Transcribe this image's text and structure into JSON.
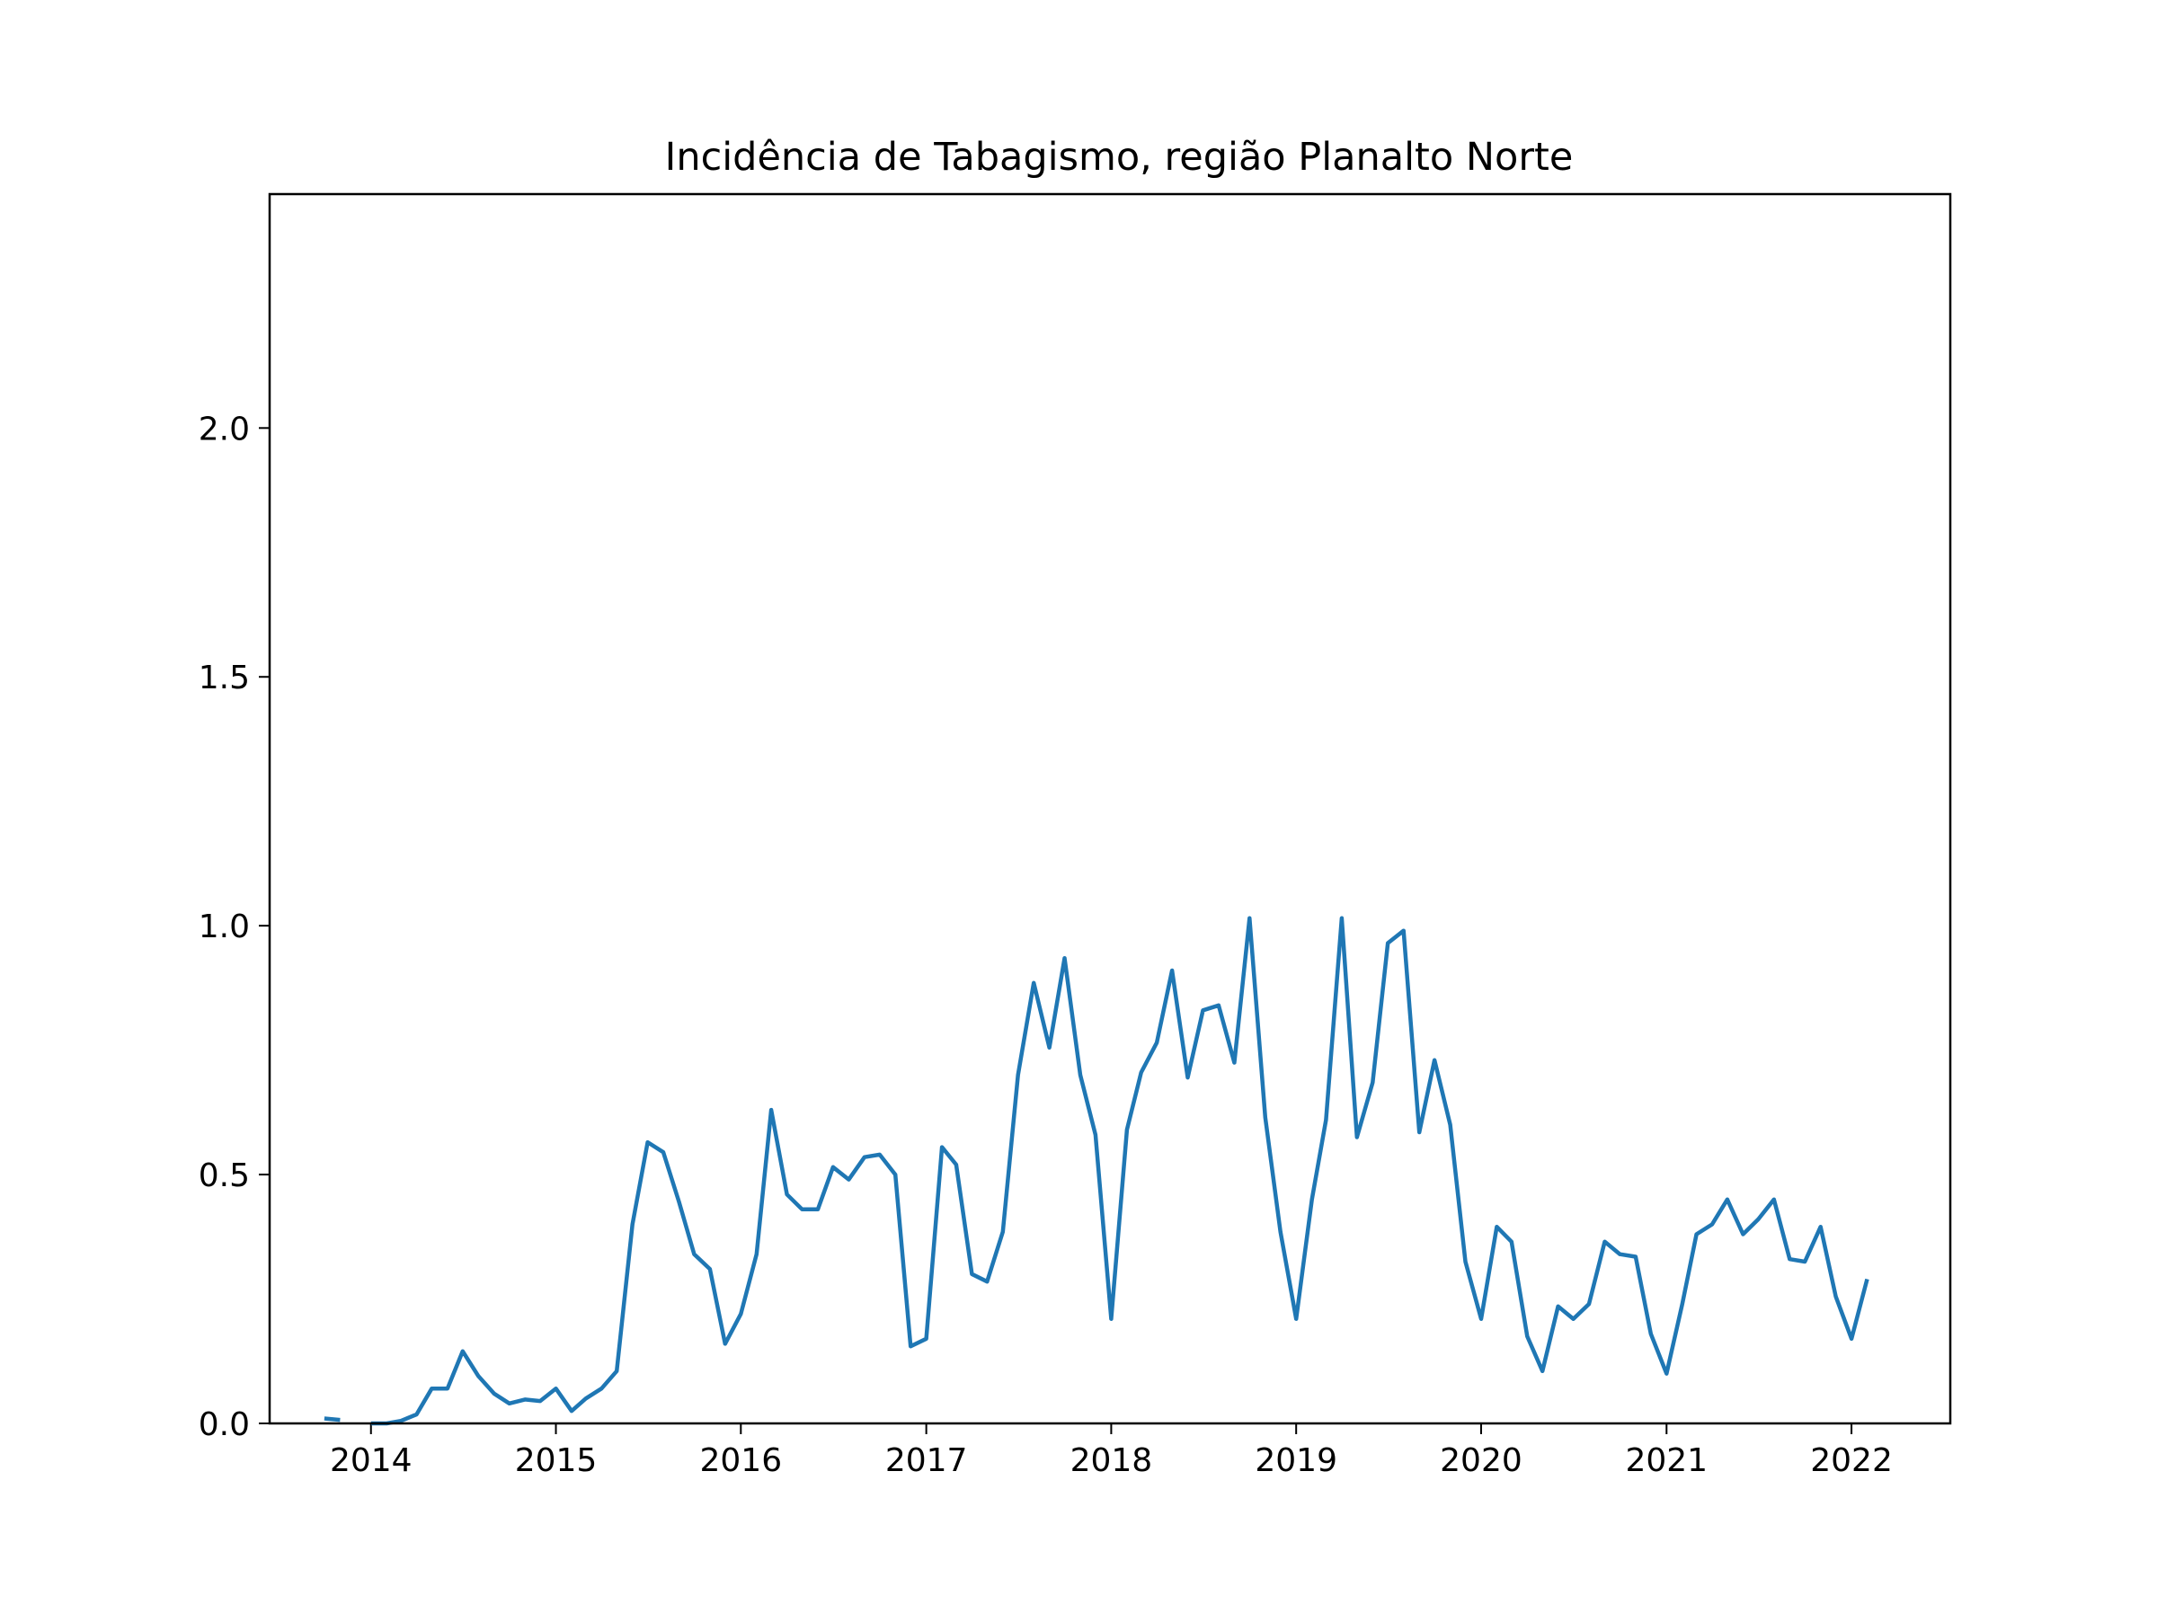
{
  "chart_data": {
    "type": "line",
    "title": "Incidência de Tabagismo, região Planalto Norte",
    "xlabel": "",
    "ylabel": "",
    "xlim": [
      "2013-06-15",
      "2022-07-15"
    ],
    "ylim": [
      0,
      2.47
    ],
    "x_ticks": [
      "2014",
      "2015",
      "2016",
      "2017",
      "2018",
      "2019",
      "2020",
      "2021",
      "2022"
    ],
    "y_ticks": [
      "0.0",
      "0.5",
      "1.0",
      "1.5",
      "2.0"
    ],
    "grid": false,
    "legend": "none",
    "line_color": "#1f77b4",
    "series": [
      {
        "x": [
          "2013-10-01",
          "2013-11-01",
          "2013-12-01",
          "2014-01-01",
          "2014-02-01",
          "2014-03-01",
          "2014-04-01",
          "2014-05-01",
          "2014-06-01",
          "2014-07-01",
          "2014-08-01",
          "2014-09-01",
          "2014-10-01",
          "2014-11-01",
          "2014-12-01",
          "2015-01-01",
          "2015-02-01",
          "2015-03-01",
          "2015-04-01",
          "2015-05-01",
          "2015-06-01",
          "2015-07-01",
          "2015-08-01",
          "2015-09-01",
          "2015-10-01",
          "2015-11-01",
          "2015-12-01",
          "2016-01-01",
          "2016-02-01",
          "2016-03-01",
          "2016-04-01",
          "2016-05-01",
          "2016-06-01",
          "2016-07-01",
          "2016-08-01",
          "2016-09-01",
          "2016-10-01",
          "2016-11-01",
          "2016-12-01",
          "2017-01-01",
          "2017-02-01",
          "2017-03-01",
          "2017-04-01",
          "2017-05-01",
          "2017-06-01",
          "2017-07-01",
          "2017-08-01",
          "2017-09-01",
          "2017-10-01",
          "2017-11-01",
          "2017-12-01",
          "2018-01-01",
          "2018-02-01",
          "2018-03-01",
          "2018-04-01",
          "2018-05-01",
          "2018-06-01",
          "2018-07-01",
          "2018-08-01",
          "2018-09-01",
          "2018-10-01",
          "2018-11-01",
          "2018-12-01",
          "2019-01-01",
          "2019-02-01",
          "2019-03-01",
          "2019-04-01",
          "2019-05-01",
          "2019-06-01",
          "2019-07-01",
          "2019-08-01",
          "2019-09-01",
          "2019-10-01",
          "2019-11-01",
          "2019-12-01",
          "2020-01-01",
          "2020-02-01",
          "2020-03-01",
          "2020-04-01",
          "2020-05-01",
          "2020-06-01",
          "2020-07-01",
          "2020-08-01",
          "2020-09-01",
          "2020-10-01",
          "2020-11-01",
          "2020-12-01",
          "2021-01-01",
          "2021-02-01",
          "2021-03-01",
          "2021-04-01",
          "2021-05-01",
          "2021-06-01",
          "2021-07-01",
          "2021-08-01",
          "2021-09-01",
          "2021-10-01",
          "2021-11-01",
          "2021-12-01",
          "2022-01-01",
          "2022-02-01"
        ],
        "y": [
          0.01,
          0.007,
          null,
          0.0,
          0.0,
          0.005,
          0.018,
          0.07,
          0.07,
          0.145,
          0.095,
          0.06,
          0.04,
          0.048,
          0.045,
          0.07,
          0.025,
          0.05,
          0.07,
          0.105,
          0.4,
          0.565,
          0.545,
          0.445,
          0.34,
          0.31,
          0.16,
          0.22,
          0.34,
          0.63,
          0.46,
          0.43,
          0.43,
          0.515,
          0.49,
          0.535,
          0.54,
          0.5,
          0.155,
          0.17,
          0.555,
          0.52,
          0.3,
          0.285,
          0.385,
          0.7,
          0.885,
          0.755,
          0.935,
          0.7,
          0.58,
          0.21,
          0.59,
          0.705,
          0.765,
          0.91,
          0.695,
          0.83,
          0.84,
          0.725,
          1.015,
          0.615,
          0.385,
          0.21,
          0.45,
          0.61,
          1.015,
          0.575,
          0.685,
          0.965,
          0.99,
          0.585,
          0.73,
          0.6,
          0.325,
          0.21,
          0.395,
          0.365,
          0.175,
          0.105,
          0.235,
          0.21,
          0.24,
          0.365,
          0.34,
          0.335,
          0.18,
          0.1,
          0.24,
          0.38,
          0.4,
          0.45,
          0.38,
          0.41,
          0.45,
          0.33,
          0.325,
          0.395,
          0.255,
          0.17,
          0.29
        ]
      }
    ]
  }
}
